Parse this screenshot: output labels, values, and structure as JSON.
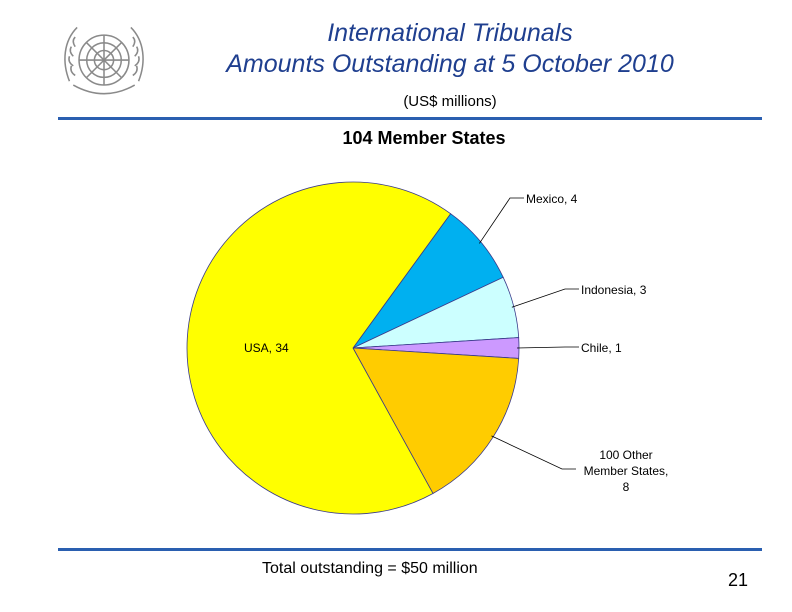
{
  "header": {
    "title_line1": "International Tribunals",
    "title_line2": "Amounts Outstanding at 5 October 2010",
    "subtitle": "(US$ millions)",
    "logo": "un-emblem-icon"
  },
  "chart_data": {
    "type": "pie",
    "title": "104 Member States",
    "slices": [
      {
        "name": "Mexico",
        "value": 4,
        "label": "Mexico, 4",
        "color": "#00b0f0"
      },
      {
        "name": "Indonesia",
        "value": 3,
        "label": "Indonesia, 3",
        "color": "#ccffff"
      },
      {
        "name": "Chile",
        "value": 1,
        "label": "Chile, 1",
        "color": "#cc99ff"
      },
      {
        "name": "100 Other Member States",
        "value": 8,
        "label_lines": [
          "100 Other",
          "Member States,",
          "8"
        ],
        "color": "#ffcc00"
      },
      {
        "name": "USA",
        "value": 34,
        "label": "USA, 34",
        "color": "#ffff00"
      }
    ]
  },
  "footer": {
    "note": "Total outstanding = $50 million",
    "page_number": "21"
  }
}
